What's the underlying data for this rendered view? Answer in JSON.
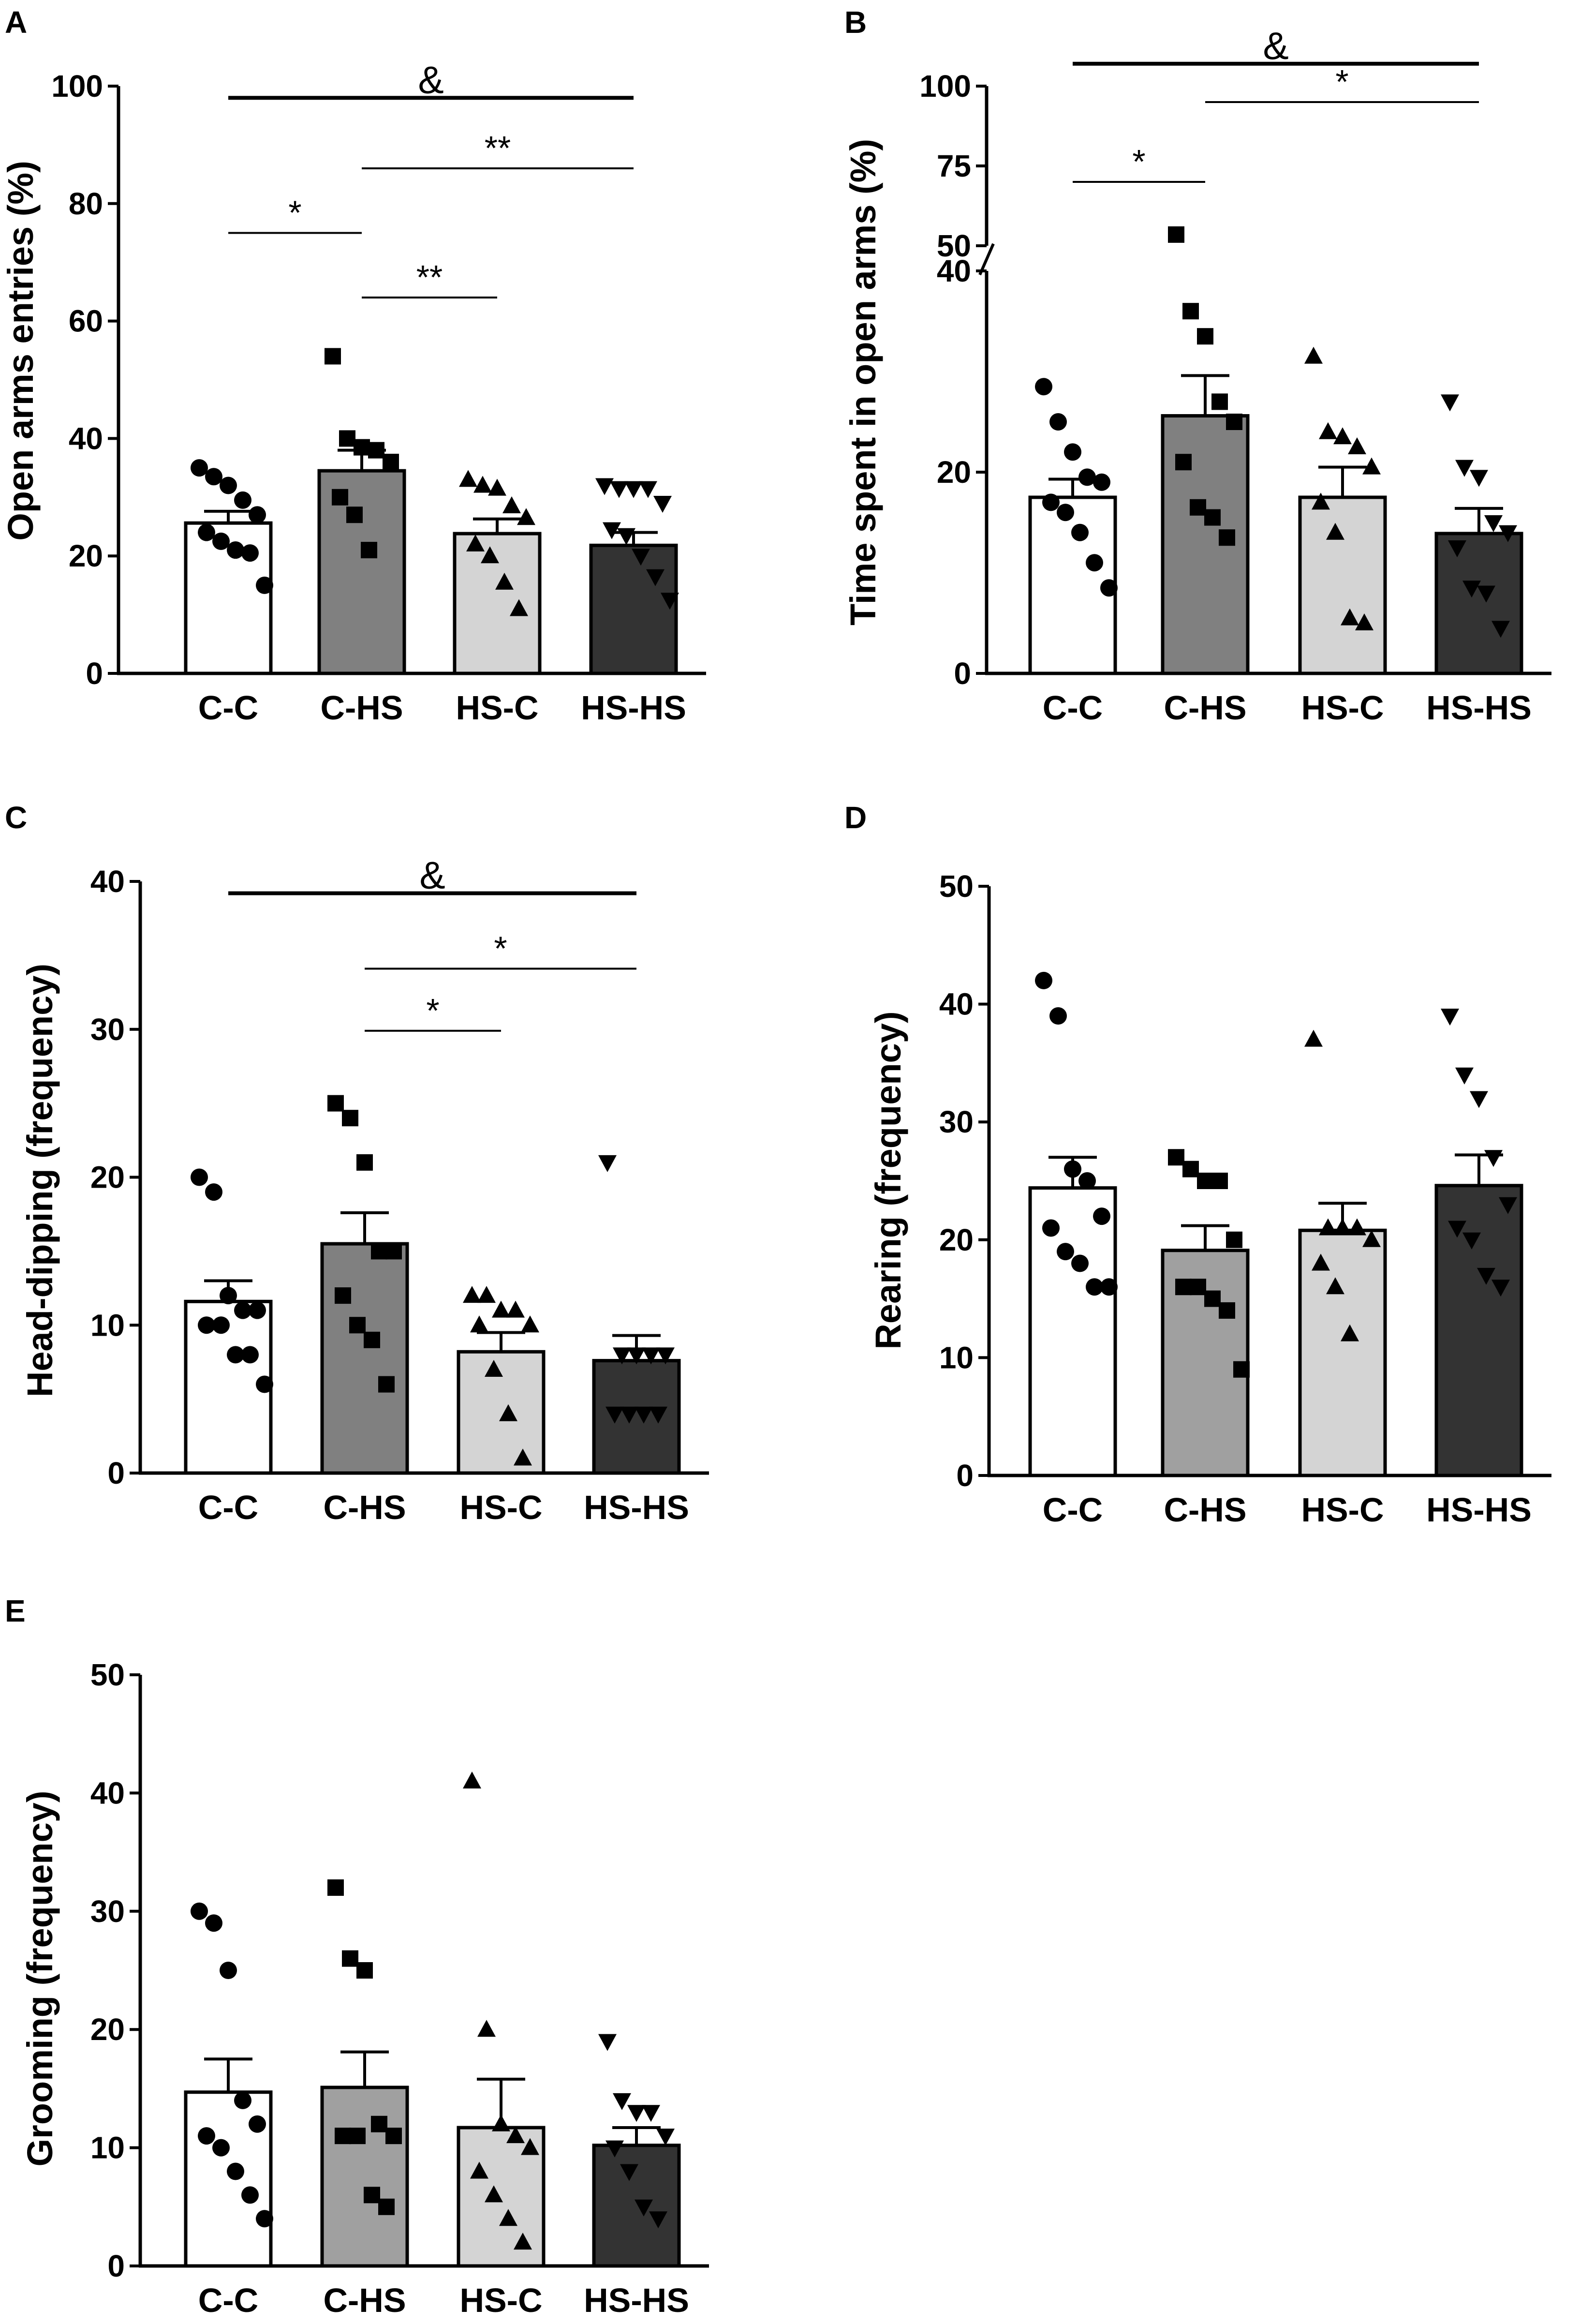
{
  "chart_data": [
    {
      "id": "A",
      "panel_label": "A",
      "type": "bar",
      "ylabel": "Open arms entries (%)",
      "ylim": [
        0,
        100
      ],
      "yticks": [
        "0",
        "20",
        "40",
        "60",
        "80",
        "100"
      ],
      "categories": [
        "C-C",
        "C-HS",
        "HS-C",
        "HS-HS"
      ],
      "bar_colors": [
        "#ffffff",
        "#808080",
        "#d4d4d4",
        "#333333"
      ],
      "markers": [
        "circle",
        "square",
        "triangle-up",
        "triangle-down"
      ],
      "means": [
        25.6,
        34.5,
        23.8,
        21.8
      ],
      "sem": [
        2.0,
        3.5,
        2.5,
        2.2
      ],
      "points": [
        [
          35,
          33.5,
          32,
          29.5,
          27,
          24,
          22.5,
          21,
          20.5,
          15
        ],
        [
          54,
          40,
          38.5,
          38,
          36,
          30,
          27,
          21
        ],
        [
          33,
          32,
          31.5,
          28.5,
          26.5,
          22,
          20,
          15.5,
          11
        ],
        [
          32,
          31.5,
          31.5,
          31.5,
          29,
          24.5,
          23.5,
          20,
          16.5,
          12.5
        ]
      ],
      "significance": [
        {
          "from": 0,
          "to": 3,
          "y": 98,
          "text": "&",
          "thick": true
        },
        {
          "from": 1,
          "to": 3,
          "y": 86,
          "text": "**",
          "thick": false
        },
        {
          "from": 0,
          "to": 1,
          "y": 75,
          "text": "*",
          "thick": false
        },
        {
          "from": 1,
          "to": 2,
          "y": 64,
          "text": "**",
          "thick": false
        }
      ]
    },
    {
      "id": "B",
      "panel_label": "B",
      "type": "bar",
      "ylabel": "Time spent in open arms (%)",
      "ylim": [
        0,
        100
      ],
      "axis_break": [
        40,
        50
      ],
      "yticks": [
        "0",
        "20",
        "40",
        "50",
        "75",
        "100"
      ],
      "categories": [
        "C-C",
        "C-HS",
        "HS-C",
        "HS-HS"
      ],
      "bar_colors": [
        "#ffffff",
        "#808080",
        "#d4d4d4",
        "#333333"
      ],
      "markers": [
        "circle",
        "square",
        "triangle-up",
        "triangle-down"
      ],
      "means": [
        17.5,
        25.6,
        17.5,
        13.9
      ],
      "sem": [
        1.8,
        4.0,
        3.0,
        2.5
      ],
      "points": [
        [
          28.5,
          25,
          22,
          19.5,
          19,
          17,
          16,
          14,
          11,
          8.5
        ],
        [
          53.5,
          36,
          33.5,
          27,
          25,
          21,
          16.5,
          15.5,
          13.5
        ],
        [
          31.5,
          24,
          23.5,
          22.5,
          20.5,
          17,
          14,
          5.5,
          5
        ],
        [
          27,
          20.5,
          19.5,
          15,
          14,
          12.5,
          8.5,
          8,
          4.5
        ]
      ],
      "significance": [
        {
          "from": 0,
          "to": 3,
          "y": 107,
          "text": "&",
          "thick": true
        },
        {
          "from": 1,
          "to": 3,
          "y": 95,
          "text": "*",
          "thick": false
        },
        {
          "from": 0,
          "to": 1,
          "y": 70,
          "text": "*",
          "thick": false
        }
      ]
    },
    {
      "id": "C",
      "panel_label": "C",
      "type": "bar",
      "ylabel": "Head-dipping (frequency)",
      "ylim": [
        0,
        40
      ],
      "yticks": [
        "0",
        "10",
        "20",
        "30",
        "40"
      ],
      "categories": [
        "C-C",
        "C-HS",
        "HS-C",
        "HS-HS"
      ],
      "bar_colors": [
        "#ffffff",
        "#808080",
        "#d4d4d4",
        "#333333"
      ],
      "markers": [
        "circle",
        "square",
        "triangle-up",
        "triangle-down"
      ],
      "means": [
        11.6,
        15.5,
        8.2,
        7.6
      ],
      "sem": [
        1.4,
        2.1,
        1.3,
        1.7
      ],
      "points": [
        [
          20,
          19,
          12,
          11,
          11,
          10,
          10,
          8,
          8,
          6
        ],
        [
          25,
          24,
          21,
          15,
          15,
          12,
          10,
          9,
          6
        ],
        [
          12,
          12,
          11,
          11,
          10,
          10,
          7,
          4,
          1
        ],
        [
          21,
          8,
          8,
          8,
          8,
          4,
          4,
          4,
          4
        ]
      ],
      "significance": [
        {
          "from": 0,
          "to": 3,
          "y": 39.2,
          "text": "&",
          "thick": true
        },
        {
          "from": 1,
          "to": 3,
          "y": 34.1,
          "text": "*",
          "thick": false
        },
        {
          "from": 1,
          "to": 2,
          "y": 29.9,
          "text": "*",
          "thick": false
        }
      ]
    },
    {
      "id": "D",
      "panel_label": "D",
      "type": "bar",
      "ylabel": "Rearing (frequency)",
      "ylim": [
        0,
        50
      ],
      "yticks": [
        "0",
        "10",
        "20",
        "30",
        "40",
        "50"
      ],
      "categories": [
        "C-C",
        "C-HS",
        "HS-C",
        "HS-HS"
      ],
      "bar_colors": [
        "#ffffff",
        "#a0a0a0",
        "#d4d4d4",
        "#333333"
      ],
      "markers": [
        "circle",
        "square",
        "triangle-up",
        "triangle-down"
      ],
      "means": [
        24.4,
        19.1,
        20.8,
        24.6
      ],
      "sem": [
        2.6,
        2.1,
        2.3,
        2.6
      ],
      "points": [
        [
          42,
          39,
          26,
          25,
          22,
          21,
          19,
          18,
          16,
          16
        ],
        [
          27,
          26,
          25,
          25,
          20,
          16,
          16,
          15,
          14,
          9
        ],
        [
          37,
          21,
          21,
          21,
          20,
          18,
          16,
          12
        ],
        [
          39,
          34,
          32,
          27,
          23,
          21,
          20,
          17,
          16
        ]
      ],
      "significance": []
    },
    {
      "id": "E",
      "panel_label": "E",
      "type": "bar",
      "ylabel": "Grooming (frequency)",
      "ylim": [
        0,
        50
      ],
      "yticks": [
        "0",
        "10",
        "20",
        "30",
        "40",
        "50"
      ],
      "categories": [
        "C-C",
        "C-HS",
        "HS-C",
        "HS-HS"
      ],
      "bar_colors": [
        "#ffffff",
        "#a0a0a0",
        "#d4d4d4",
        "#333333"
      ],
      "markers": [
        "circle",
        "square",
        "triangle-up",
        "triangle-down"
      ],
      "means": [
        14.7,
        15.1,
        11.7,
        10.2
      ],
      "sem": [
        2.8,
        3.0,
        4.1,
        1.5
      ],
      "points": [
        [
          30,
          29,
          25,
          14,
          12,
          11,
          10,
          8,
          6,
          4
        ],
        [
          32,
          26,
          25,
          12,
          11,
          11,
          11,
          6,
          5
        ],
        [
          41,
          20,
          12,
          11,
          10,
          8,
          6,
          4,
          2
        ],
        [
          19,
          14,
          13,
          13,
          11,
          10,
          8,
          5,
          4
        ]
      ],
      "significance": []
    }
  ]
}
